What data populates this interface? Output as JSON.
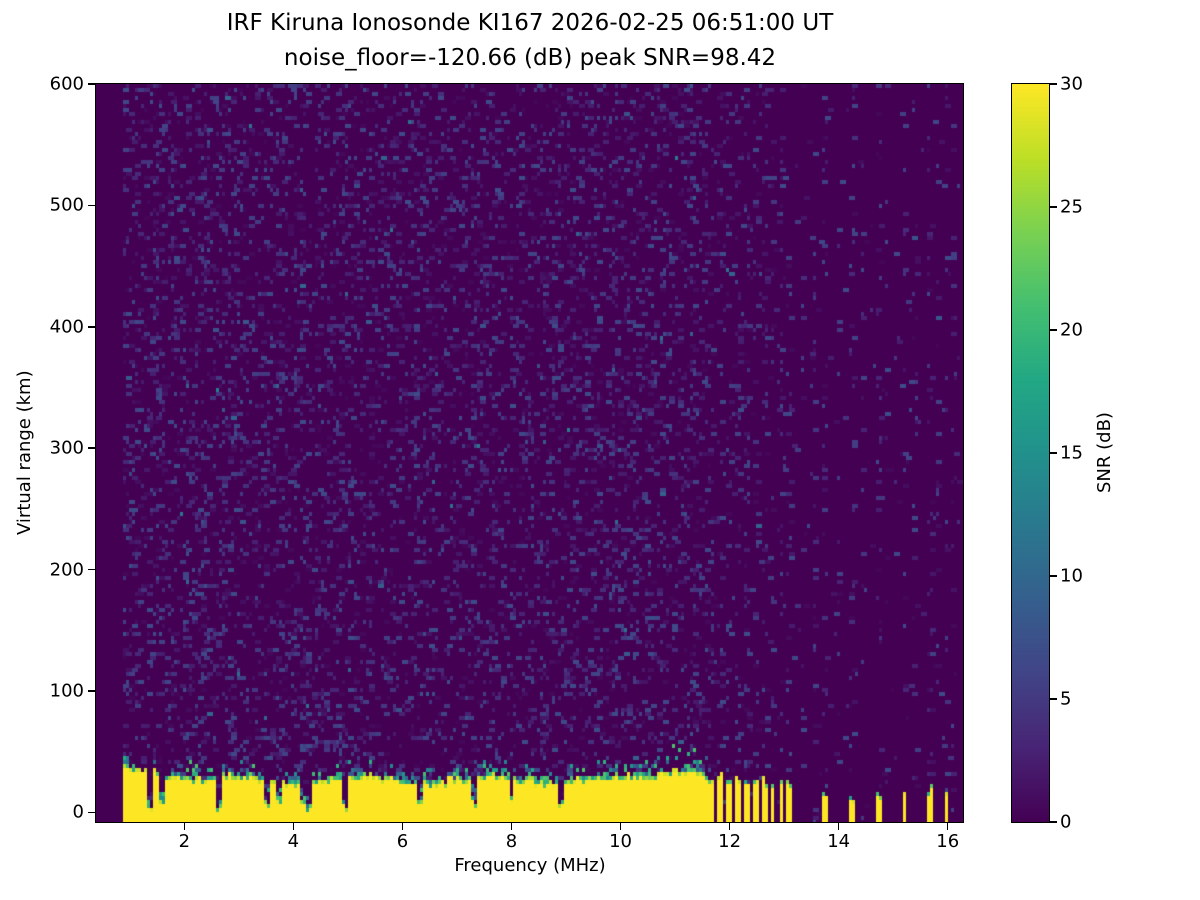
{
  "chart_data": {
    "type": "heatmap",
    "title": "IRF Kiruna Ionosonde KI167 2026-02-25 06:51:00  UT",
    "subtitle": "noise_floor=-120.66 (dB) peak SNR=98.42",
    "station": "IRF Kiruna",
    "instrument": "Ionosonde KI167",
    "timestamp_ut": "2026-02-25 06:51:00",
    "noise_floor_db": -120.66,
    "peak_snr_db": 98.42,
    "xlabel": "Frequency (MHz)",
    "ylabel": "Virtual range (km)",
    "xlim": [
      0.38,
      16.28
    ],
    "ylim": [
      -8,
      600
    ],
    "x_ticks": [
      2,
      4,
      6,
      8,
      10,
      12,
      14,
      16
    ],
    "y_ticks": [
      0,
      100,
      200,
      300,
      400,
      500,
      600
    ],
    "grid": false,
    "colorbar": {
      "label": "SNR (dB)",
      "min": 0,
      "max": 30,
      "ticks": [
        0,
        5,
        10,
        15,
        20,
        25,
        30
      ],
      "colormap": "viridis",
      "position": "right"
    },
    "colors": {
      "background": "#440154",
      "peak": "#fde725",
      "viridis_stops": [
        "#440154",
        "#482475",
        "#414487",
        "#355f8d",
        "#2a788e",
        "#21918c",
        "#22a884",
        "#44bf70",
        "#7ad151",
        "#bddf26",
        "#fde725"
      ]
    },
    "features": {
      "data_freq_range_mhz": [
        0.9,
        16.2
      ],
      "background_snr_db": 0,
      "noise_speckle_max_db": 7,
      "ground_echo_band": {
        "freq_start_mhz": 0.9,
        "freq_end_mhz": 11.58,
        "mean_top_km": 30,
        "snr_db": 30,
        "notch_freqs_mhz": [
          1.36,
          1.6,
          2.65,
          3.52,
          3.72,
          4.18,
          4.3,
          4.95,
          6.3,
          7.3,
          8.0,
          8.9
        ]
      },
      "dense_stripe_freqs_mhz": [
        11.67,
        11.83,
        11.99,
        12.14,
        12.31,
        12.47,
        12.63,
        12.79,
        12.95,
        13.1
      ],
      "sparse_stripe_freqs_mhz": [
        13.77,
        14.24,
        14.72,
        15.21,
        15.67,
        15.98
      ],
      "faint_column_freqs_mhz": [
        13.35,
        13.55,
        14.0,
        14.45,
        14.9,
        15.4,
        15.8,
        16.1
      ]
    }
  }
}
